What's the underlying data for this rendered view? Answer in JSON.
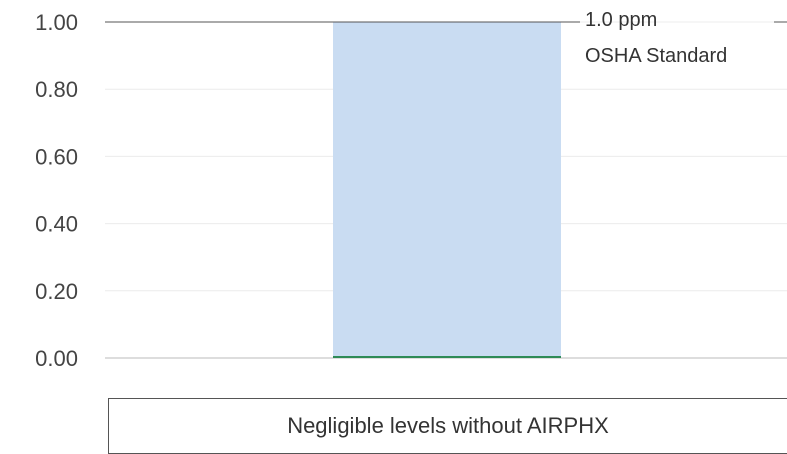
{
  "chart_data": {
    "type": "bar",
    "ylim": [
      0,
      1.0
    ],
    "y_ticks": [
      "0.00",
      "0.20",
      "0.40",
      "0.60",
      "0.80",
      "1.00"
    ],
    "grid": true,
    "series": [
      {
        "name": "",
        "values": [
          1.0
        ],
        "color": "#c9dcf2"
      },
      {
        "name": "",
        "values": [
          0.0
        ],
        "color": "#2e8b57"
      }
    ],
    "reference_line": {
      "value": 1.0,
      "label_line1": "1.0 ppm",
      "label_line2": "OSHA Standard"
    },
    "category_label": "Negligible levels without AIRPHX"
  }
}
